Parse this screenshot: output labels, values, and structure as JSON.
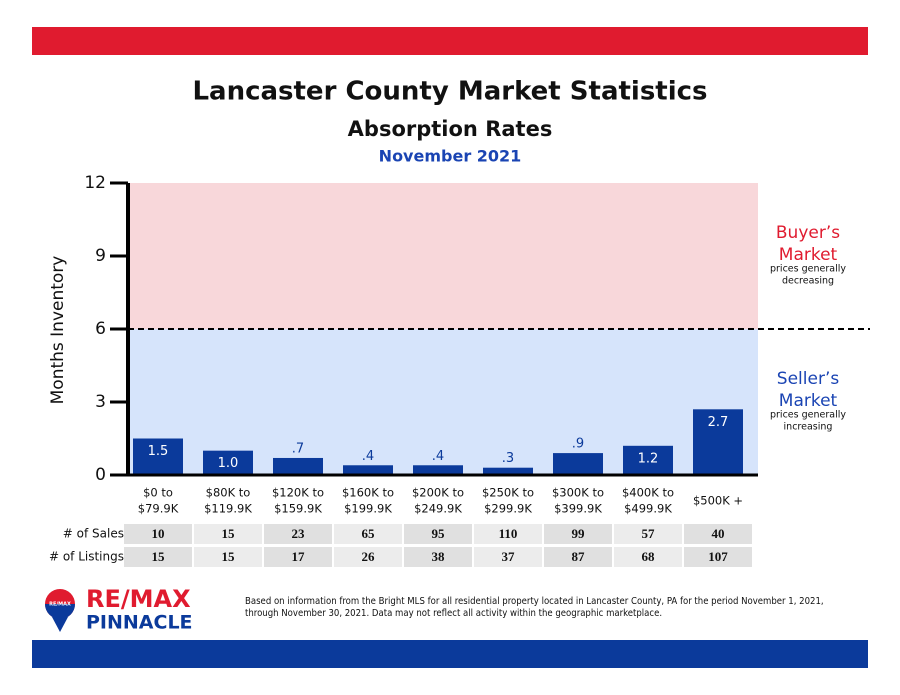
{
  "chart_data": {
    "type": "bar",
    "title": "Lancaster County Market Statistics",
    "subtitle": "Absorption Rates",
    "date": "November 2021",
    "y_label": "Months Inventory",
    "categories": [
      [
        "$0 to",
        "$79.9K"
      ],
      [
        "$80K to",
        "$119.9K"
      ],
      [
        "$120K to",
        "$159.9K"
      ],
      [
        "$160K to",
        "$199.9K"
      ],
      [
        "$200K to",
        "$249.9K"
      ],
      [
        "$250K to",
        "$299.9K"
      ],
      [
        "$300K to",
        "$399.9K"
      ],
      [
        "$400K to",
        "$499.9K"
      ],
      [
        "$500K +"
      ]
    ],
    "values": [
      1.5,
      1.0,
      0.7,
      0.4,
      0.4,
      0.3,
      0.9,
      1.2,
      2.7
    ],
    "value_labels": [
      "1.5",
      "1.0",
      ".7",
      ".4",
      ".4",
      ".3",
      ".9",
      "1.2",
      "2.7"
    ],
    "color": "#0b3a9b",
    "ylim": [
      0,
      12
    ],
    "yticks": [
      0,
      3,
      6,
      9,
      12
    ],
    "threshold": 6,
    "zones": {
      "buyer": {
        "title": [
          "Buyer’s",
          "Market"
        ],
        "note": [
          "prices generally",
          "decreasing"
        ],
        "color": "#f8d7da",
        "title_color": "#e01b2f"
      },
      "seller": {
        "title": [
          "Seller’s",
          "Market"
        ],
        "note": [
          "prices generally",
          "increasing"
        ],
        "color": "#d6e4fb",
        "title_color": "#1a44b3"
      }
    },
    "table": {
      "rows": [
        {
          "label": "# of Sales",
          "values": [
            "10",
            "15",
            "23",
            "65",
            "95",
            "110",
            "99",
            "57",
            "40"
          ]
        },
        {
          "label": "# of Listings",
          "values": [
            "15",
            "15",
            "17",
            "26",
            "38",
            "37",
            "87",
            "68",
            "107"
          ]
        }
      ]
    }
  },
  "logo": {
    "brand": "RE/MAX",
    "office": "PINNACLE",
    "badge": "RE/MAX"
  },
  "footnote": "Based on information from the Bright MLS for all residential property located in Lancaster County, PA for the period November 1, 2021, through November 30, 2021.  Data may not reflect all activity within the geographic marketplace."
}
